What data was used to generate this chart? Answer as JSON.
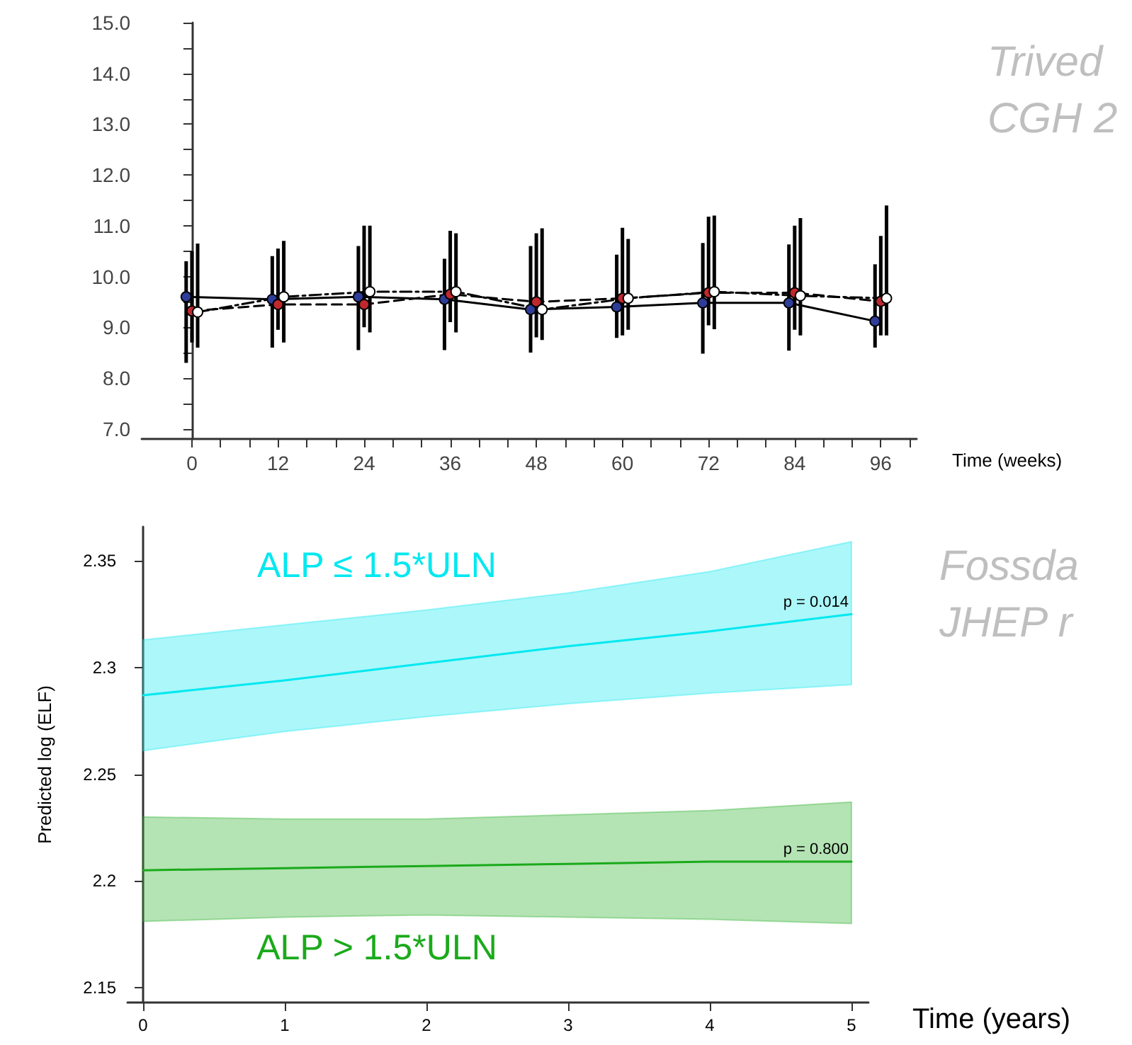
{
  "chart_data": [
    {
      "type": "line",
      "xlabel": "Time (weeks)",
      "x": [
        0,
        12,
        24,
        36,
        48,
        60,
        72,
        84,
        96
      ],
      "xlim": [
        -7,
        101
      ],
      "xticks": [
        0,
        {
          "value": 4,
          "label": null
        },
        {
          "value": 8,
          "label": null
        },
        12,
        {
          "value": 16,
          "label": null
        },
        {
          "value": 20,
          "label": null
        },
        24,
        {
          "value": 28,
          "label": null
        },
        {
          "value": 32,
          "label": null
        },
        36,
        {
          "value": 40,
          "label": null
        },
        {
          "value": 44,
          "label": null
        },
        48,
        {
          "value": 52,
          "label": null
        },
        {
          "value": 56,
          "label": null
        },
        60,
        {
          "value": 64,
          "label": null
        },
        {
          "value": 68,
          "label": null
        },
        72,
        {
          "value": 76,
          "label": null
        },
        {
          "value": 80,
          "label": null
        },
        84,
        {
          "value": 88,
          "label": null
        },
        {
          "value": 92,
          "label": null
        },
        96,
        {
          "value": 100,
          "label": null
        }
      ],
      "ylim": [
        6.8,
        15
      ],
      "yticks": [
        {
          "value": 7,
          "label": "7.0"
        },
        {
          "value": 7.5,
          "label": null
        },
        {
          "value": 8,
          "label": "8.0"
        },
        {
          "value": 8.5,
          "label": null
        },
        {
          "value": 9,
          "label": "9.0"
        },
        {
          "value": 9.5,
          "label": null
        },
        {
          "value": 10,
          "label": "10.0"
        },
        {
          "value": 10.5,
          "label": null
        },
        {
          "value": 11,
          "label": "11.0"
        },
        {
          "value": 11.5,
          "label": null
        },
        {
          "value": 12,
          "label": "12.0"
        },
        {
          "value": 12.5,
          "label": null
        },
        {
          "value": 13,
          "label": "13.0"
        },
        {
          "value": 13.5,
          "label": null
        },
        {
          "value": 14,
          "label": "14.0"
        },
        {
          "value": 14.5,
          "label": null
        },
        {
          "value": 15,
          "label": "15.0"
        }
      ],
      "marker": "circle",
      "legend": false,
      "series": [
        {
          "color": "#000000",
          "colors": [
            "#2e3d99",
            "#2e3d99",
            "#2e3d99",
            "#2e3d99",
            "#2e3d99",
            "#2e3d99",
            "#2e3d99",
            "#2e3d99",
            "#2e3d99"
          ],
          "x": [
            -0.8,
            11.2,
            23.2,
            35.2,
            47.2,
            59.2,
            71.2,
            83.2,
            95.2
          ],
          "line_style": "solid",
          "values": [
            9.6,
            9.55,
            9.6,
            9.55,
            9.35,
            9.4,
            9.48,
            9.48,
            9.12
          ],
          "errors": [
            [
              8.3,
              10.3
            ],
            [
              8.6,
              10.4
            ],
            [
              8.55,
              10.6
            ],
            [
              8.55,
              10.35
            ],
            [
              8.5,
              10.6
            ],
            [
              8.79,
              10.43
            ],
            [
              8.48,
              10.66
            ],
            [
              8.54,
              10.63
            ],
            [
              8.6,
              10.24
            ]
          ]
        },
        {
          "color": "#000000",
          "colors": [
            "#c0282d",
            "#c0282d",
            "#c0282d",
            "#c0282d",
            "#c0282d",
            "#c0282d",
            "#c0282d",
            "#c0282d",
            "#c0282d"
          ],
          "line_style": "dashed",
          "values": [
            9.32,
            9.45,
            9.45,
            9.65,
            9.5,
            9.57,
            9.68,
            9.68,
            9.51
          ],
          "errors": [
            [
              8.7,
              10.5
            ],
            [
              8.95,
              10.55
            ],
            [
              9.0,
              11.0
            ],
            [
              9.1,
              10.9
            ],
            [
              8.8,
              10.85
            ],
            [
              8.84,
              10.96
            ],
            [
              9.04,
              11.18
            ],
            [
              8.95,
              11.0
            ],
            [
              8.84,
              10.8
            ]
          ]
        },
        {
          "color": "#000000",
          "colors": [
            "#ffffff",
            "#ffffff",
            "#ffffff",
            "#ffffff",
            "#ffffff",
            "#ffffff",
            "#ffffff",
            "#ffffff",
            "#ffffff"
          ],
          "x": [
            0.8,
            12.8,
            24.8,
            36.8,
            48.8,
            60.8,
            72.8,
            84.8,
            96.8
          ],
          "line_style": "dotted",
          "values": [
            9.3,
            9.6,
            9.7,
            9.7,
            9.35,
            9.57,
            9.7,
            9.62,
            9.57
          ],
          "errors": [
            [
              8.6,
              10.65
            ],
            [
              8.7,
              10.7
            ],
            [
              8.9,
              11.0
            ],
            [
              8.9,
              10.85
            ],
            [
              8.75,
              10.95
            ],
            [
              8.95,
              10.74
            ],
            [
              8.96,
              11.2
            ],
            [
              8.84,
              11.15
            ],
            [
              8.84,
              11.4
            ]
          ]
        }
      ],
      "annotations": [
        "Trived",
        "CGH 2"
      ]
    },
    {
      "type": "line",
      "xlabel": "Time (years)",
      "ylabel": "Predicted log (ELF)",
      "x": [
        0,
        1,
        2,
        3,
        4,
        5
      ],
      "xlim": [
        -0.11,
        5.12
      ],
      "xticks": [
        0,
        1,
        2,
        3,
        4,
        5
      ],
      "ylim": [
        2.143,
        2.366
      ],
      "yticks": [
        2.15,
        2.2,
        2.25,
        2.3,
        2.35
      ],
      "marker": "none",
      "legend": false,
      "series": [
        {
          "name": "ALP ≤ 1.5*ULN",
          "color": "#00e8f0",
          "values": [
            2.287,
            2.294,
            2.302,
            2.31,
            2.317,
            2.325
          ],
          "lower": [
            2.261,
            2.27,
            2.277,
            2.283,
            2.288,
            2.292
          ],
          "upper": [
            2.313,
            2.32,
            2.327,
            2.335,
            2.345,
            2.359
          ]
        },
        {
          "name": "ALP > 1.5*ULN",
          "color": "#1aaa1a",
          "values": [
            2.205,
            2.206,
            2.207,
            2.208,
            2.209,
            2.209
          ],
          "lower": [
            2.181,
            2.183,
            2.184,
            2.183,
            2.182,
            2.18
          ],
          "upper": [
            2.23,
            2.229,
            2.229,
            2.231,
            2.233,
            2.237
          ]
        }
      ],
      "annotations": [
        {
          "text": "p = 0.014",
          "x": 5,
          "y": 2.325
        },
        {
          "text": "p = 0.800",
          "x": 5,
          "y": 2.209
        },
        "Fossda",
        "JHEP r"
      ]
    }
  ]
}
